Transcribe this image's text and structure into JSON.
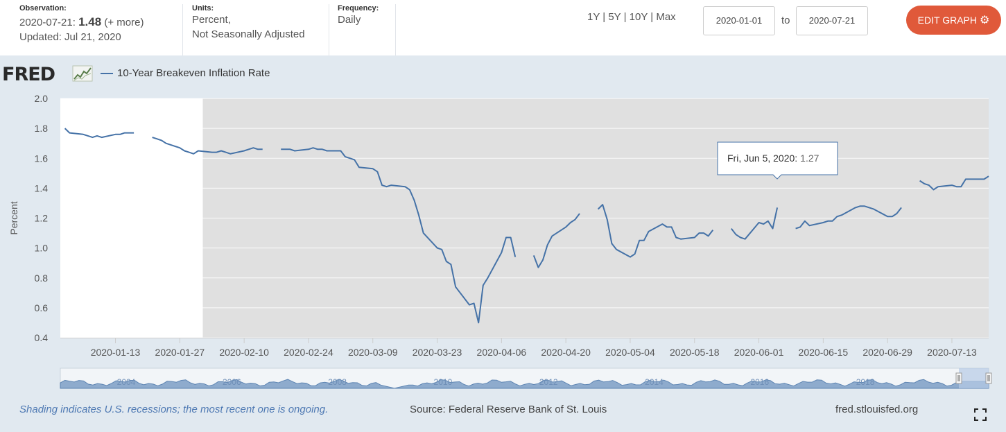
{
  "header": {
    "observation_label": "Observation:",
    "observation_date": "2020-07-21:",
    "observation_value": "1.48",
    "observation_more": "(+ more)",
    "updated": "Updated: Jul 21, 2020",
    "units_label": "Units:",
    "units_line1": "Percent,",
    "units_line2": "Not Seasonally Adjusted",
    "frequency_label": "Frequency:",
    "frequency_value": "Daily",
    "range_1y": "1Y",
    "range_5y": "5Y",
    "range_10y": "10Y",
    "range_max": "Max",
    "sep": "|",
    "start_date": "2020-01-01",
    "to_label": "to",
    "end_date": "2020-07-21",
    "edit_button": "EDIT GRAPH",
    "gear_icon": "gear-icon"
  },
  "logo": "FRED",
  "legend_label": "10-Year Breakeven Inflation Rate",
  "tooltip": {
    "date": "Fri, Jun 5, 2020:",
    "value": "1.27"
  },
  "footer": {
    "note": "Shading indicates U.S. recessions; the most recent one is ongoing.",
    "source": "Source: Federal Reserve Bank of St. Louis",
    "site": "fred.stlouisfed.org"
  },
  "navigator_years": [
    "2004",
    "2006",
    "2008",
    "2010",
    "2012",
    "2014",
    "2016",
    "2018"
  ],
  "colors": {
    "line": "#4572a7",
    "recession": "#e0e0e0",
    "button": "#e0593a"
  },
  "chart_data": {
    "type": "line",
    "ylabel": "Percent",
    "ylim": [
      0.4,
      2.0
    ],
    "yticks": [
      "0.4",
      "0.6",
      "0.8",
      "1.0",
      "1.2",
      "1.4",
      "1.6",
      "1.8",
      "2.0"
    ],
    "xticks": [
      "2020-01-13",
      "2020-01-27",
      "2020-02-10",
      "2020-02-24",
      "2020-03-09",
      "2020-03-23",
      "2020-04-06",
      "2020-04-20",
      "2020-05-04",
      "2020-05-18",
      "2020-06-01",
      "2020-06-15",
      "2020-06-29",
      "2020-07-13"
    ],
    "xlim": [
      "2020-01-01",
      "2020-07-21"
    ],
    "recession_start": "2020-02-01",
    "series": [
      {
        "values": [
          [
            "2020-01-02",
            1.8
          ],
          [
            "2020-01-03",
            1.77
          ],
          [
            "2020-01-06",
            1.76
          ],
          [
            "2020-01-07",
            1.75
          ],
          [
            "2020-01-08",
            1.74
          ],
          [
            "2020-01-09",
            1.75
          ],
          [
            "2020-01-10",
            1.74
          ],
          [
            "2020-01-13",
            1.76
          ],
          [
            "2020-01-14",
            1.76
          ],
          [
            "2020-01-15",
            1.77
          ],
          [
            "2020-01-16",
            1.77
          ],
          [
            "2020-01-17",
            1.77
          ],
          [
            "2020-01-20",
            null
          ],
          [
            "2020-01-21",
            1.74
          ],
          [
            "2020-01-22",
            1.73
          ],
          [
            "2020-01-23",
            1.72
          ],
          [
            "2020-01-24",
            1.7
          ],
          [
            "2020-01-27",
            1.67
          ],
          [
            "2020-01-28",
            1.65
          ],
          [
            "2020-01-29",
            1.64
          ],
          [
            "2020-01-30",
            1.63
          ],
          [
            "2020-01-31",
            1.65
          ],
          [
            "2020-02-03",
            1.64
          ],
          [
            "2020-02-04",
            1.64
          ],
          [
            "2020-02-05",
            1.65
          ],
          [
            "2020-02-06",
            1.64
          ],
          [
            "2020-02-07",
            1.63
          ],
          [
            "2020-02-10",
            1.65
          ],
          [
            "2020-02-11",
            1.66
          ],
          [
            "2020-02-12",
            1.67
          ],
          [
            "2020-02-13",
            1.66
          ],
          [
            "2020-02-14",
            1.66
          ],
          [
            "2020-02-17",
            null
          ],
          [
            "2020-02-18",
            1.66
          ],
          [
            "2020-02-19",
            1.66
          ],
          [
            "2020-02-20",
            1.66
          ],
          [
            "2020-02-21",
            1.65
          ],
          [
            "2020-02-24",
            1.66
          ],
          [
            "2020-02-25",
            1.67
          ],
          [
            "2020-02-26",
            1.66
          ],
          [
            "2020-02-27",
            1.66
          ],
          [
            "2020-02-28",
            1.65
          ],
          [
            "2020-03-02",
            1.65
          ],
          [
            "2020-03-03",
            1.61
          ],
          [
            "2020-03-04",
            1.6
          ],
          [
            "2020-03-05",
            1.59
          ],
          [
            "2020-03-06",
            1.54
          ],
          [
            "2020-03-09",
            1.53
          ],
          [
            "2020-03-10",
            1.51
          ],
          [
            "2020-03-11",
            1.42
          ],
          [
            "2020-03-12",
            1.41
          ],
          [
            "2020-03-13",
            1.42
          ],
          [
            "2020-03-16",
            1.41
          ],
          [
            "2020-03-17",
            1.39
          ],
          [
            "2020-03-18",
            1.32
          ],
          [
            "2020-03-19",
            1.22
          ],
          [
            "2020-03-20",
            1.1
          ],
          [
            "2020-03-23",
            1.0
          ],
          [
            "2020-03-24",
            0.99
          ],
          [
            "2020-03-25",
            0.91
          ],
          [
            "2020-03-26",
            0.89
          ],
          [
            "2020-03-27",
            0.74
          ],
          [
            "2020-03-30",
            0.62
          ],
          [
            "2020-03-31",
            0.63
          ],
          [
            "2020-04-01",
            0.5
          ],
          [
            "2020-04-02",
            0.75
          ],
          [
            "2020-04-03",
            0.8
          ],
          [
            "2020-04-06",
            0.97
          ],
          [
            "2020-04-07",
            1.07
          ],
          [
            "2020-04-08",
            1.07
          ],
          [
            "2020-04-09",
            0.94
          ],
          [
            "2020-04-10",
            null
          ],
          [
            "2020-04-13",
            0.95
          ],
          [
            "2020-04-14",
            0.87
          ],
          [
            "2020-04-15",
            0.92
          ],
          [
            "2020-04-16",
            1.02
          ],
          [
            "2020-04-17",
            1.08
          ],
          [
            "2020-04-20",
            1.14
          ],
          [
            "2020-04-21",
            1.17
          ],
          [
            "2020-04-22",
            1.19
          ],
          [
            "2020-04-23",
            1.23
          ],
          [
            "2020-04-24",
            null
          ],
          [
            "2020-04-27",
            1.26
          ],
          [
            "2020-04-28",
            1.29
          ],
          [
            "2020-04-29",
            1.19
          ],
          [
            "2020-04-30",
            1.03
          ],
          [
            "2020-05-01",
            0.99
          ],
          [
            "2020-05-04",
            0.94
          ],
          [
            "2020-05-05",
            0.96
          ],
          [
            "2020-05-06",
            1.05
          ],
          [
            "2020-05-07",
            1.05
          ],
          [
            "2020-05-08",
            1.11
          ],
          [
            "2020-05-11",
            1.16
          ],
          [
            "2020-05-12",
            1.14
          ],
          [
            "2020-05-13",
            1.14
          ],
          [
            "2020-05-14",
            1.07
          ],
          [
            "2020-05-15",
            1.06
          ],
          [
            "2020-05-18",
            1.07
          ],
          [
            "2020-05-19",
            1.1
          ],
          [
            "2020-05-20",
            1.1
          ],
          [
            "2020-05-21",
            1.08
          ],
          [
            "2020-05-22",
            1.12
          ],
          [
            "2020-05-25",
            null
          ],
          [
            "2020-05-26",
            1.13
          ],
          [
            "2020-05-27",
            1.09
          ],
          [
            "2020-05-28",
            1.07
          ],
          [
            "2020-05-29",
            1.06
          ],
          [
            "2020-06-01",
            1.17
          ],
          [
            "2020-06-02",
            1.16
          ],
          [
            "2020-06-03",
            1.18
          ],
          [
            "2020-06-04",
            1.13
          ],
          [
            "2020-06-05",
            1.27
          ],
          [
            "2020-06-08",
            null
          ],
          [
            "2020-06-09",
            1.13
          ],
          [
            "2020-06-10",
            1.14
          ],
          [
            "2020-06-11",
            1.18
          ],
          [
            "2020-06-12",
            1.15
          ],
          [
            "2020-06-15",
            1.17
          ],
          [
            "2020-06-16",
            1.18
          ],
          [
            "2020-06-17",
            1.18
          ],
          [
            "2020-06-18",
            1.21
          ],
          [
            "2020-06-19",
            1.22
          ],
          [
            "2020-06-22",
            1.27
          ],
          [
            "2020-06-23",
            1.28
          ],
          [
            "2020-06-24",
            1.28
          ],
          [
            "2020-06-25",
            1.27
          ],
          [
            "2020-06-26",
            1.26
          ],
          [
            "2020-06-29",
            1.21
          ],
          [
            "2020-06-30",
            1.21
          ],
          [
            "2020-07-01",
            1.23
          ],
          [
            "2020-07-02",
            1.27
          ],
          [
            "2020-07-03",
            null
          ],
          [
            "2020-07-06",
            1.45
          ],
          [
            "2020-07-07",
            1.43
          ],
          [
            "2020-07-08",
            1.42
          ],
          [
            "2020-07-09",
            1.39
          ],
          [
            "2020-07-10",
            1.41
          ],
          [
            "2020-07-13",
            1.42
          ],
          [
            "2020-07-14",
            1.41
          ],
          [
            "2020-07-15",
            1.41
          ],
          [
            "2020-07-16",
            1.46
          ],
          [
            "2020-07-17",
            1.46
          ],
          [
            "2020-07-20",
            1.46
          ],
          [
            "2020-07-21",
            1.48
          ]
        ]
      }
    ]
  }
}
